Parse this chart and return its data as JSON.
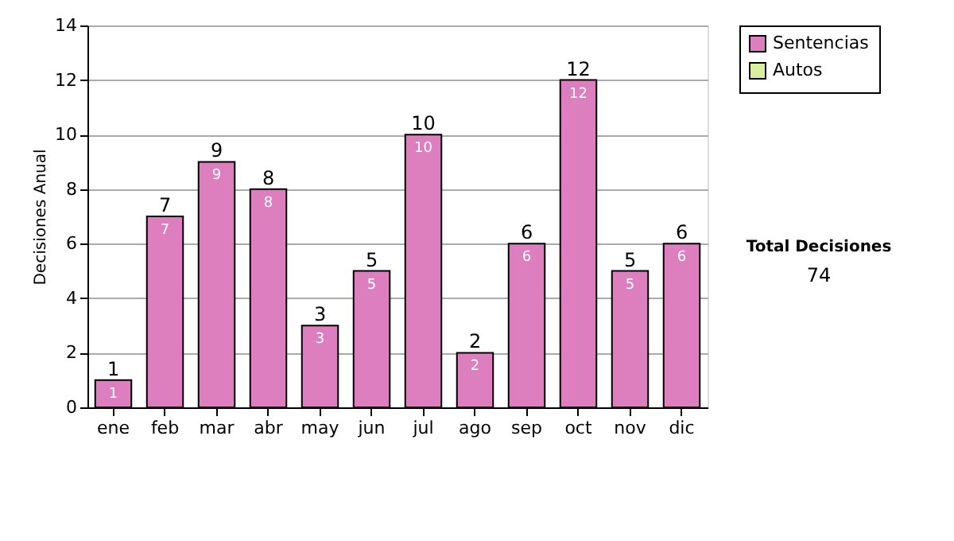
{
  "chart_data": {
    "type": "bar",
    "ylabel": "Decisiones Anual",
    "categories": [
      "ene",
      "feb",
      "mar",
      "abr",
      "may",
      "jun",
      "jul",
      "ago",
      "sep",
      "oct",
      "nov",
      "dic"
    ],
    "series": [
      {
        "name": "Sentencias",
        "color": "#dd7fbf",
        "values": [
          1,
          7,
          9,
          8,
          3,
          5,
          10,
          2,
          6,
          12,
          5,
          6
        ],
        "value_labels": [
          "1",
          "7",
          "9",
          "8",
          "3",
          "5",
          "10",
          "2",
          "6",
          "12",
          "5",
          "6"
        ]
      },
      {
        "name": "Autos",
        "color": "#d9eea0",
        "values": [
          null,
          null,
          null,
          null,
          null,
          null,
          null,
          null,
          null,
          null,
          null,
          null
        ]
      }
    ],
    "totals": [
      "1",
      "7",
      "9",
      "8",
      "3",
      "5",
      "10",
      "2",
      "6",
      "12",
      "5",
      "6"
    ],
    "ylim": [
      0,
      14
    ],
    "yticks": [
      0,
      2,
      4,
      6,
      8,
      10,
      12,
      14
    ],
    "grid": "y",
    "legend": "right",
    "annotations": [
      "Total Decisiones",
      "74"
    ]
  }
}
